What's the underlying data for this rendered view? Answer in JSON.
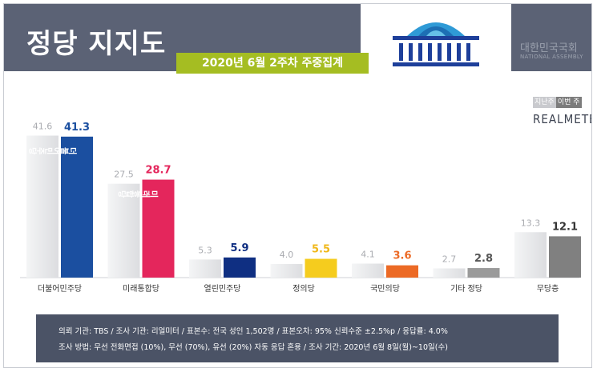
{
  "header": {
    "title": "정당 지지도",
    "subtitle": "2020년 6월 2주차 주중집계",
    "assembly_ko": "대한민국국회",
    "assembly_en": "NATIONAL ASSEMBLY"
  },
  "brand": "REALMETER",
  "legend": {
    "previous": "지난주",
    "current": "이번 주"
  },
  "footer": {
    "line1": "의뢰 기관: TBS / 조사 기관: 리얼미터 / 표본수: 전국 성인 1,502명 / 표본오차: 95% 신뢰수준 ±2.5%p / 응답률: 4.0%",
    "line2": "조사 방법: 무선 전화면접 (10%), 무선 (70%), 유선 (20%) 자동 응답 혼용 / 조사 기간: 2020년 6월 8일(월)~10일(수)"
  },
  "chart_data": {
    "type": "bar",
    "title": "정당 지지도",
    "subtitle": "2020년 6월 2주차 주중집계",
    "categories": [
      "더불어민주당",
      "미래통합당",
      "열린민주당",
      "정의당",
      "국민의당",
      "기타 정당",
      "무당층"
    ],
    "series": [
      {
        "name": "지난주",
        "values": [
          41.6,
          27.5,
          5.3,
          4.0,
          4.1,
          2.7,
          13.3
        ]
      },
      {
        "name": "이번 주",
        "values": [
          41.3,
          28.7,
          5.9,
          5.5,
          3.6,
          2.8,
          12.1
        ]
      }
    ],
    "bar_labels": [
      "더불어민주당",
      "미래통합당",
      "",
      "",
      "",
      "",
      ""
    ],
    "colors": {
      "previous": "#e6e7e9",
      "current": [
        "#1b4fa0",
        "#e4265c",
        "#0f2f82",
        "#f5cc1e",
        "#ec6a25",
        "#9a9a9a",
        "#808080"
      ],
      "label_current": [
        "#1b4fa0",
        "#e4265c",
        "#0f2f82",
        "#f0b81a",
        "#ec6a25",
        "#555555",
        "#333333"
      ],
      "label_previous": "#a9abb0"
    },
    "ylim": [
      0,
      45
    ],
    "grid": false,
    "legend_position": "top-right"
  }
}
